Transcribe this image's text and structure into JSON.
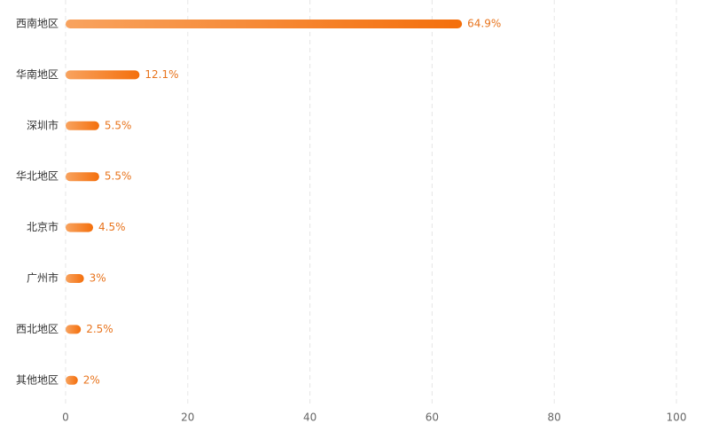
{
  "chart_data": {
    "type": "bar",
    "orientation": "horizontal",
    "categories": [
      "西南地区",
      "华南地区",
      "深圳市",
      "华北地区",
      "北京市",
      "广州市",
      "西北地区",
      "其他地区"
    ],
    "values": [
      64.9,
      12.1,
      5.5,
      5.5,
      4.5,
      3,
      2.5,
      2
    ],
    "value_labels": [
      "64.9%",
      "12.1%",
      "5.5%",
      "5.5%",
      "4.5%",
      "3%",
      "2.5%",
      "2%"
    ],
    "colors": [
      "#f8a35f",
      "#f46f0c"
    ],
    "xlim": [
      0,
      100
    ],
    "xticks": [
      0,
      20,
      40,
      60,
      80,
      100
    ],
    "grid": true
  }
}
